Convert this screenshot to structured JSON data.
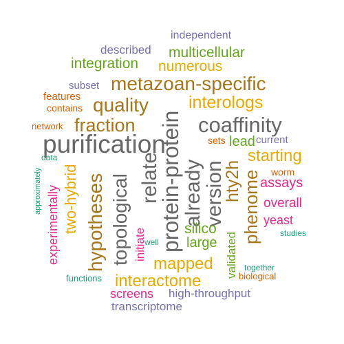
{
  "colors": {
    "gray": "#666666",
    "brown": "#a6761d",
    "gold": "#e6ab02",
    "green": "#66a61e",
    "teal": "#1b9e77",
    "orange": "#d95f02",
    "purple": "#7570b3",
    "magenta": "#e7298a"
  },
  "words": [
    {
      "text": "purification",
      "color": "gray"
    },
    {
      "text": "protein-protein",
      "color": "gray"
    },
    {
      "text": "coaffinity",
      "color": "gray"
    },
    {
      "text": "metazoan-specific",
      "color": "brown"
    },
    {
      "text": "already",
      "color": "gray"
    },
    {
      "text": "relate",
      "color": "gray"
    },
    {
      "text": "topological",
      "color": "gray"
    },
    {
      "text": "version",
      "color": "gray"
    },
    {
      "text": "hypotheses",
      "color": "brown"
    },
    {
      "text": "quality",
      "color": "brown"
    },
    {
      "text": "fraction",
      "color": "brown"
    },
    {
      "text": "interologs",
      "color": "gold"
    },
    {
      "text": "phenome",
      "color": "brown"
    },
    {
      "text": "hty2h",
      "color": "brown"
    },
    {
      "text": "two-hybrid",
      "color": "gold"
    },
    {
      "text": "mapped",
      "color": "gold"
    },
    {
      "text": "interactome",
      "color": "gold"
    },
    {
      "text": "starting",
      "color": "gold"
    },
    {
      "text": "multicellular",
      "color": "green"
    },
    {
      "text": "integration",
      "color": "green"
    },
    {
      "text": "numerous",
      "color": "gold"
    },
    {
      "text": "experimentally",
      "color": "magenta"
    },
    {
      "text": "assays",
      "color": "magenta"
    },
    {
      "text": "overall",
      "color": "magenta"
    },
    {
      "text": "yeast",
      "color": "magenta"
    },
    {
      "text": "silico",
      "color": "green"
    },
    {
      "text": "large",
      "color": "green"
    },
    {
      "text": "lead",
      "color": "green"
    },
    {
      "text": "validated",
      "color": "green"
    },
    {
      "text": "screens",
      "color": "magenta"
    },
    {
      "text": "initiate",
      "color": "magenta"
    },
    {
      "text": "transcriptome",
      "color": "purple"
    },
    {
      "text": "high-throughput",
      "color": "purple"
    },
    {
      "text": "described",
      "color": "purple"
    },
    {
      "text": "independent",
      "color": "purple"
    },
    {
      "text": "subset",
      "color": "purple"
    },
    {
      "text": "current",
      "color": "purple"
    },
    {
      "text": "features",
      "color": "orange"
    },
    {
      "text": "contains",
      "color": "orange"
    },
    {
      "text": "network",
      "color": "orange"
    },
    {
      "text": "sets",
      "color": "orange"
    },
    {
      "text": "worm",
      "color": "orange"
    },
    {
      "text": "biological",
      "color": "orange"
    },
    {
      "text": "data",
      "color": "teal"
    },
    {
      "text": "approximately",
      "color": "teal"
    },
    {
      "text": "well",
      "color": "teal"
    },
    {
      "text": "functions",
      "color": "teal"
    },
    {
      "text": "together",
      "color": "teal"
    },
    {
      "text": "studies",
      "color": "teal"
    }
  ]
}
